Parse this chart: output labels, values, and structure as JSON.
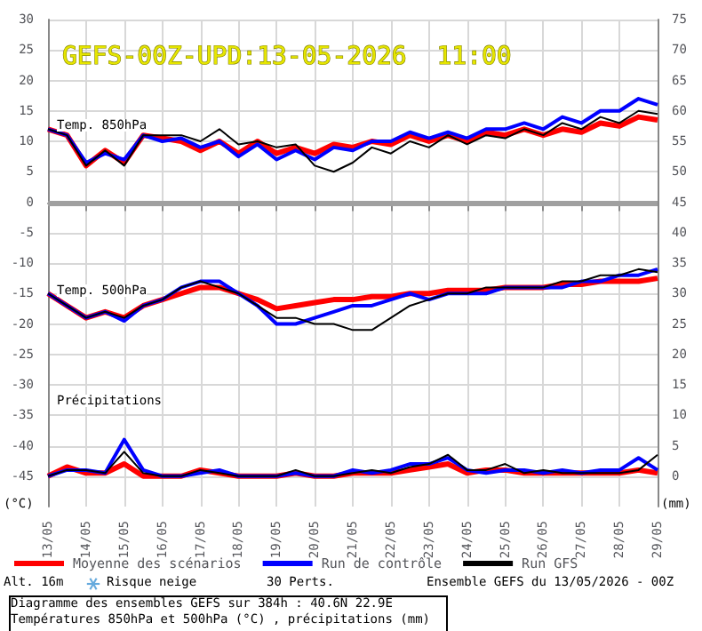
{
  "chart_data": {
    "type": "line",
    "title": "GEFS-00Z-UPD:13-05-2026  11:00",
    "x": [
      "2026-05-13T00:00",
      "2026-05-13T12:00",
      "2026-05-14T00:00",
      "2026-05-14T12:00",
      "2026-05-15T00:00",
      "2026-05-15T12:00",
      "2026-05-16T00:00",
      "2026-05-16T12:00",
      "2026-05-17T00:00",
      "2026-05-17T12:00",
      "2026-05-18T00:00",
      "2026-05-18T12:00",
      "2026-05-19T00:00",
      "2026-05-19T12:00",
      "2026-05-20T00:00",
      "2026-05-20T12:00",
      "2026-05-21T00:00",
      "2026-05-21T12:00",
      "2026-05-22T00:00",
      "2026-05-22T12:00",
      "2026-05-23T00:00",
      "2026-05-23T12:00",
      "2026-05-24T00:00",
      "2026-05-24T12:00",
      "2026-05-25T00:00",
      "2026-05-25T12:00",
      "2026-05-26T00:00",
      "2026-05-26T12:00",
      "2026-05-27T00:00",
      "2026-05-27T12:00",
      "2026-05-28T00:00",
      "2026-05-28T12:00",
      "2026-05-29T00:00"
    ],
    "series": [
      {
        "name": "Moyenne des scénarios",
        "color": "#ff0000",
        "values": [
          12,
          11,
          6,
          8.5,
          6.5,
          11,
          10.5,
          10,
          8.5,
          10,
          8,
          10,
          8,
          9,
          8,
          9.5,
          9,
          10,
          9.5,
          11,
          10,
          11,
          10,
          11.5,
          11,
          12,
          11,
          12,
          11.5,
          13,
          12.5,
          14,
          13.5
        ]
      },
      {
        "name": "Run de contrôle",
        "color": "#0000ff",
        "values": [
          12,
          11,
          6.5,
          8,
          7,
          11,
          10,
          10.5,
          9,
          10,
          7.5,
          9.5,
          7,
          8.5,
          7,
          9,
          8.5,
          10,
          10,
          11.5,
          10.5,
          11.5,
          10.5,
          12,
          12,
          13,
          12,
          14,
          13,
          15,
          15,
          17,
          16
        ]
      },
      {
        "name": "Run GFS",
        "color": "#000000",
        "values": [
          12,
          11,
          6,
          8.5,
          6,
          11,
          11,
          11,
          10,
          12,
          9.5,
          10,
          9,
          9.5,
          6,
          5,
          6.5,
          9,
          8,
          10,
          9,
          11,
          9.5,
          11,
          10.5,
          12,
          11,
          13,
          12,
          14,
          13,
          15,
          14.5
        ]
      },
      {
        "color": "#000000",
        "values": [
          -15,
          -17,
          -19,
          -18,
          -19,
          -17,
          -16,
          -14,
          -13,
          -14,
          -15,
          -17,
          -19,
          -19,
          -20,
          -20,
          -21,
          -21,
          -19,
          -17,
          -16,
          -15,
          -15,
          -14,
          -14,
          -14,
          -14,
          -13,
          -13,
          -12,
          -12,
          -11,
          -11.5
        ]
      },
      {
        "color": "#0000ff",
        "values": [
          -15,
          -17,
          -19,
          -18,
          -19.5,
          -17,
          -16,
          -14,
          -13,
          -13,
          -15,
          -17,
          -20,
          -20,
          -19,
          -18,
          -17,
          -17,
          -16,
          -15,
          -16,
          -15,
          -15,
          -15,
          -14,
          -14,
          -14,
          -14,
          -13,
          -13,
          -12,
          -12,
          -11
        ]
      },
      {
        "color": "#ff0000",
        "values": [
          -15,
          -17,
          -19,
          -18,
          -19,
          -17,
          -16,
          -15,
          -14,
          -14,
          -15,
          -16,
          -17.5,
          -17,
          -16.5,
          -16,
          -16,
          -15.5,
          -15.5,
          -15,
          -15,
          -14.5,
          -14.5,
          -14.5,
          -14,
          -14,
          -14,
          -13.5,
          -13.5,
          -13,
          -13,
          -13,
          -12.5
        ]
      },
      {
        "color": "#000000",
        "axis": "y2",
        "values": [
          0,
          1,
          1,
          0.5,
          4,
          0.5,
          0,
          0,
          1,
          0.5,
          0,
          0,
          0,
          1,
          0,
          0,
          0.5,
          1,
          0.5,
          1.5,
          2,
          3.5,
          1,
          1,
          2,
          0.5,
          1,
          0.5,
          0.5,
          0.5,
          0.5,
          1,
          3.5
        ]
      },
      {
        "color": "#0000ff",
        "axis": "y2",
        "values": [
          0,
          1,
          1,
          0.5,
          6,
          1,
          0,
          0,
          0.5,
          1,
          0,
          0,
          0,
          0.5,
          0,
          0,
          1,
          0.5,
          1,
          2,
          2,
          3,
          1,
          0.5,
          1,
          1,
          0.5,
          1,
          0.5,
          1,
          1,
          3,
          1
        ]
      },
      {
        "color": "#ff0000",
        "axis": "y2",
        "values": [
          0,
          1.5,
          0.5,
          0.5,
          2,
          0,
          0,
          0,
          1,
          0.5,
          0,
          0,
          0,
          0.5,
          0,
          0,
          0.5,
          0.5,
          0.5,
          1,
          1.5,
          2,
          0.5,
          1,
          1,
          0.5,
          0.5,
          0.5,
          0.5,
          0.5,
          0.5,
          1,
          0.5
        ]
      }
    ],
    "xlim": [
      "2026-05-13",
      "2026-05-29"
    ],
    "xticks": [
      {
        "value": "2026-05-13",
        "label": "13/05"
      },
      {
        "value": "2026-05-14",
        "label": "14/05"
      },
      {
        "value": "2026-05-15",
        "label": "15/05"
      },
      {
        "value": "2026-05-16",
        "label": "16/05"
      },
      {
        "value": "2026-05-17",
        "label": "17/05"
      },
      {
        "value": "2026-05-18",
        "label": "18/05"
      },
      {
        "value": "2026-05-19",
        "label": "19/05"
      },
      {
        "value": "2026-05-20",
        "label": "20/05"
      },
      {
        "value": "2026-05-21",
        "label": "21/05"
      },
      {
        "value": "2026-05-22",
        "label": "22/05"
      },
      {
        "value": "2026-05-23",
        "label": "23/05"
      },
      {
        "value": "2026-05-24",
        "label": "24/05"
      },
      {
        "value": "2026-05-25",
        "label": "25/05"
      },
      {
        "value": "2026-05-26",
        "label": "26/05"
      },
      {
        "value": "2026-05-27",
        "label": "27/05"
      },
      {
        "value": "2026-05-28",
        "label": "28/05"
      },
      {
        "value": "2026-05-29",
        "label": "29/05"
      }
    ],
    "ylim": [
      -50,
      30
    ],
    "yticks": [
      -45,
      -40,
      -35,
      -30,
      -25,
      -20,
      -15,
      -10,
      -5,
      0,
      5,
      10,
      15,
      20,
      25,
      30
    ],
    "y2lim": [
      -5,
      75
    ],
    "y2ticks": [
      0,
      5,
      10,
      15,
      20,
      25,
      30,
      35,
      40,
      45,
      50,
      55,
      60,
      65,
      70,
      75
    ],
    "ref_lines": [
      {
        "axis": "y",
        "value": 0,
        "color": "#a0a0a0"
      }
    ],
    "grid": true,
    "legend": "bottom left",
    "marker": "none",
    "line_style": "solid",
    "annotations": [
      "Temp. 850hPa",
      "Temp. 500hPa",
      "Précipitations",
      "(°C)",
      "(mm)",
      "Alt. 16m",
      "Risque neige",
      "30 Perts.",
      "Diagramme des ensembles GEFS sur 384h : 40.6N 22.9E",
      "Températures 850hPa et 500hPa (°C) , précipitations (mm)",
      "Ensemble GEFS du 13/05/2026 - 00Z"
    ]
  }
}
